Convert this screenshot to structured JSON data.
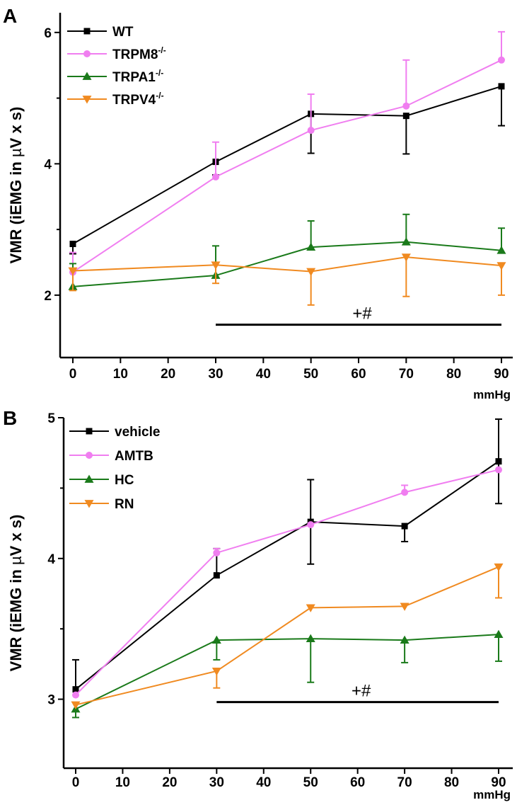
{
  "figure": {
    "width": 731,
    "height": 1137
  },
  "chart_data": [
    {
      "panel": "A",
      "type": "line",
      "title": "",
      "xlabel": "mmHg",
      "ylabel_parts": [
        "VMR (iEMG in ",
        "µ",
        "V x s)"
      ],
      "xlim": [
        -3,
        93
      ],
      "ylim": [
        1.05,
        6.3
      ],
      "xticks": [
        0,
        10,
        20,
        30,
        40,
        50,
        60,
        70,
        80,
        90
      ],
      "yticks": [
        2,
        4,
        6
      ],
      "yminor": [
        3,
        5
      ],
      "legend_position": "top-left",
      "annotation": {
        "text": "+#",
        "x_from": 30,
        "x_to": 90,
        "y": 1.55
      },
      "series": [
        {
          "name": "WT",
          "sup": "",
          "color": "#000000",
          "marker": "square",
          "x": [
            0,
            30,
            50,
            70,
            90
          ],
          "y": [
            2.78,
            4.03,
            4.76,
            4.73,
            5.18
          ],
          "err": [
            0.15,
            0.2,
            0.6,
            0.58,
            0.6
          ],
          "err_dir": [
            -1,
            -1,
            -1,
            -1,
            -1
          ]
        },
        {
          "name": "TRPM8",
          "sup": "-/-",
          "color": "#f07ef0",
          "marker": "circle",
          "x": [
            0,
            30,
            50,
            70,
            90
          ],
          "y": [
            2.35,
            3.8,
            4.51,
            4.88,
            5.58
          ],
          "err": [
            0.3,
            0.53,
            0.55,
            0.7,
            0.43
          ],
          "err_dir": [
            1,
            1,
            1,
            1,
            1
          ]
        },
        {
          "name": "TRPA1",
          "sup": "-/-",
          "color": "#1a7a1a",
          "marker": "triangle-up",
          "x": [
            0,
            30,
            50,
            70,
            90
          ],
          "y": [
            2.13,
            2.3,
            2.73,
            2.81,
            2.68
          ],
          "err": [
            0.35,
            0.45,
            0.4,
            0.42,
            0.34
          ],
          "err_dir": [
            1,
            1,
            1,
            1,
            1
          ]
        },
        {
          "name": "TRPV4",
          "sup": "-/-",
          "color": "#f08a20",
          "marker": "triangle-down",
          "x": [
            0,
            30,
            50,
            70,
            90
          ],
          "y": [
            2.37,
            2.46,
            2.36,
            2.58,
            2.45
          ],
          "err": [
            0.3,
            0.28,
            0.51,
            0.6,
            0.45
          ],
          "err_dir": [
            -1,
            -1,
            -1,
            -1,
            -1
          ]
        }
      ]
    },
    {
      "panel": "B",
      "type": "line",
      "title": "",
      "xlabel": "mmHg",
      "ylabel_parts": [
        "VMR (iEMG in ",
        "µ",
        "V x s)"
      ],
      "xlim": [
        -3,
        93
      ],
      "ylim": [
        2.51,
        5.0
      ],
      "xticks": [
        0,
        10,
        20,
        30,
        40,
        50,
        60,
        70,
        80,
        90
      ],
      "yticks": [
        3,
        4,
        5
      ],
      "yminor": [
        3.5,
        4.5
      ],
      "legend_position": "top-left",
      "annotation": {
        "text": "+#",
        "x_from": 30,
        "x_to": 90,
        "y": 2.98
      },
      "series": [
        {
          "name": "vehicle",
          "sup": "",
          "color": "#000000",
          "marker": "square",
          "x": [
            0,
            30,
            50,
            70,
            90
          ],
          "y": [
            3.07,
            3.88,
            4.26,
            4.23,
            4.69
          ],
          "err": [
            0.21,
            0.19,
            0.3,
            0.11,
            0.3
          ],
          "err_dir": [
            1,
            1,
            1,
            -1,
            1
          ],
          "err_both": [
            false,
            false,
            true,
            false,
            true
          ]
        },
        {
          "name": "AMTB",
          "sup": "",
          "color": "#f07ef0",
          "marker": "circle",
          "x": [
            0,
            30,
            50,
            70,
            90
          ],
          "y": [
            3.03,
            4.04,
            4.24,
            4.47,
            4.63
          ],
          "err": [
            0.0,
            0.03,
            0.0,
            0.05,
            0.0
          ],
          "err_dir": [
            1,
            1,
            1,
            1,
            1
          ]
        },
        {
          "name": "HC",
          "sup": "",
          "color": "#1a7a1a",
          "marker": "triangle-up",
          "x": [
            0,
            30,
            50,
            70,
            90
          ],
          "y": [
            2.93,
            3.42,
            3.43,
            3.42,
            3.46
          ],
          "err": [
            0.06,
            0.14,
            0.31,
            0.16,
            0.19
          ],
          "err_dir": [
            -1,
            -1,
            -1,
            -1,
            -1
          ]
        },
        {
          "name": "RN",
          "sup": "",
          "color": "#f08a20",
          "marker": "triangle-down",
          "x": [
            0,
            30,
            50,
            70,
            90
          ],
          "y": [
            2.96,
            3.2,
            3.65,
            3.66,
            3.94
          ],
          "err": [
            0.0,
            0.12,
            0.0,
            0.0,
            0.22
          ],
          "err_dir": [
            -1,
            -1,
            -1,
            -1,
            -1
          ]
        }
      ]
    }
  ]
}
